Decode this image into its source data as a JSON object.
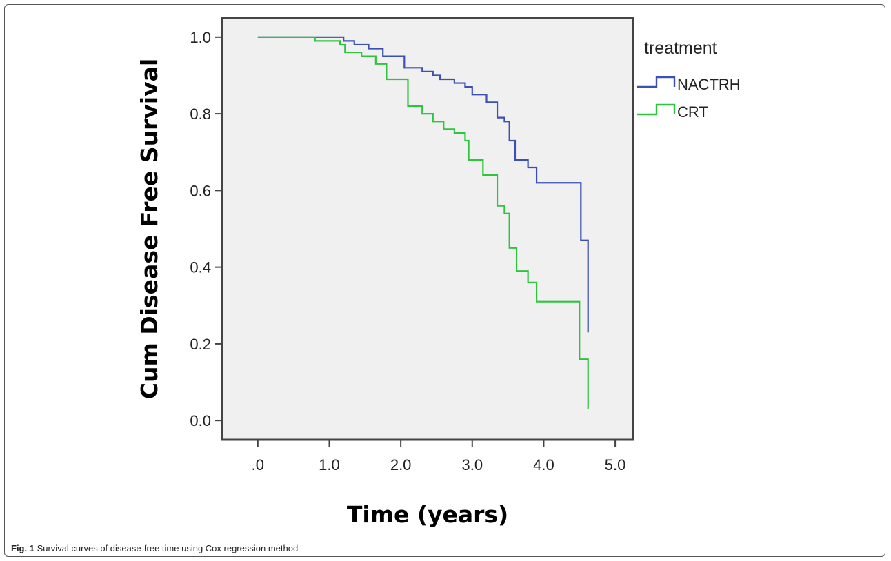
{
  "caption": {
    "label": "Fig. 1",
    "text": "Survival curves of disease-free time using Cox regression method"
  },
  "chart_data": {
    "type": "line",
    "step": true,
    "xlabel": "Time (years)",
    "ylabel": "Cum Disease Free Survival",
    "xlim": [
      -0.5,
      5.25
    ],
    "ylim": [
      -0.05,
      1.05
    ],
    "x_ticks": [
      ".0",
      "1.0",
      "2.0",
      "3.0",
      "4.0",
      "5.0"
    ],
    "x_tick_values": [
      0,
      1,
      2,
      3,
      4,
      5
    ],
    "y_ticks": [
      "0.0",
      "0.2",
      "0.4",
      "0.6",
      "0.8",
      "1.0"
    ],
    "y_tick_values": [
      0,
      0.2,
      0.4,
      0.6,
      0.8,
      1.0
    ],
    "grid": false,
    "plot_background": "#f0f0f0",
    "legend": {
      "title": "treatment",
      "placement": "right"
    },
    "series": [
      {
        "name": "NACTRH",
        "color": "#3c4fb2",
        "points": [
          [
            0,
            1.0
          ],
          [
            1.2,
            0.99
          ],
          [
            1.35,
            0.98
          ],
          [
            1.55,
            0.97
          ],
          [
            1.75,
            0.95
          ],
          [
            2.05,
            0.92
          ],
          [
            2.3,
            0.91
          ],
          [
            2.45,
            0.9
          ],
          [
            2.55,
            0.89
          ],
          [
            2.75,
            0.88
          ],
          [
            2.9,
            0.87
          ],
          [
            3.0,
            0.85
          ],
          [
            3.2,
            0.83
          ],
          [
            3.35,
            0.79
          ],
          [
            3.45,
            0.78
          ],
          [
            3.52,
            0.73
          ],
          [
            3.6,
            0.68
          ],
          [
            3.78,
            0.66
          ],
          [
            3.9,
            0.62
          ],
          [
            4.52,
            0.47
          ],
          [
            4.62,
            0.23
          ]
        ],
        "end_x": 4.62
      },
      {
        "name": "CRT",
        "color": "#2ec43e",
        "points": [
          [
            0,
            1.0
          ],
          [
            0.8,
            0.99
          ],
          [
            1.15,
            0.98
          ],
          [
            1.22,
            0.96
          ],
          [
            1.45,
            0.95
          ],
          [
            1.65,
            0.93
          ],
          [
            1.8,
            0.89
          ],
          [
            2.1,
            0.82
          ],
          [
            2.3,
            0.8
          ],
          [
            2.45,
            0.78
          ],
          [
            2.6,
            0.76
          ],
          [
            2.75,
            0.75
          ],
          [
            2.9,
            0.73
          ],
          [
            2.95,
            0.68
          ],
          [
            3.15,
            0.64
          ],
          [
            3.35,
            0.56
          ],
          [
            3.45,
            0.54
          ],
          [
            3.52,
            0.45
          ],
          [
            3.62,
            0.39
          ],
          [
            3.78,
            0.36
          ],
          [
            3.9,
            0.31
          ],
          [
            4.5,
            0.16
          ],
          [
            4.62,
            0.03
          ]
        ],
        "end_x": 4.62
      }
    ]
  }
}
